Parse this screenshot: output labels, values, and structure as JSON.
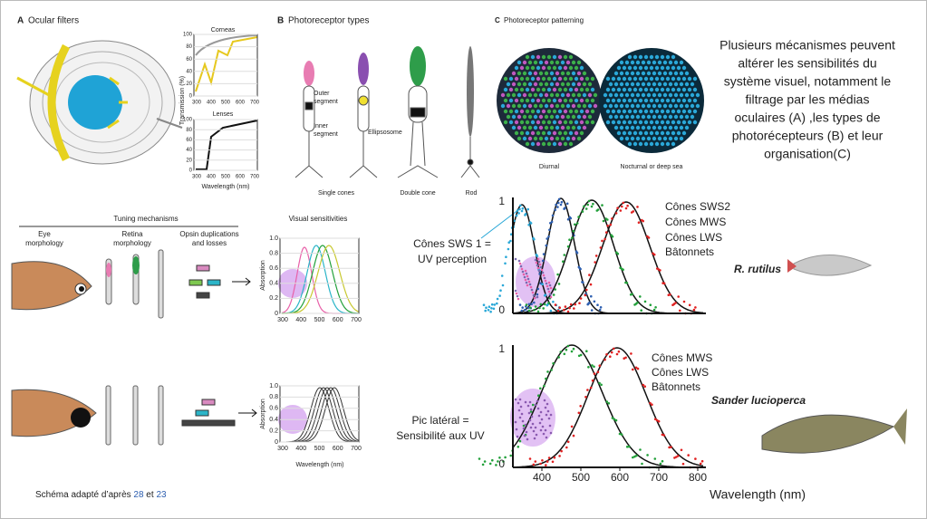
{
  "panel_a": {
    "letter": "A",
    "title": "Ocular filters",
    "corneas": {
      "title": "Corneas",
      "yticks": [
        "100",
        "80",
        "60",
        "40",
        "20",
        "0"
      ],
      "xticks": [
        "300",
        "400",
        "500",
        "600",
        "700"
      ],
      "ylabel": "Transmission (%)"
    },
    "lenses": {
      "title": "Lenses",
      "yticks": [
        "100",
        "80",
        "60",
        "40",
        "20",
        "0"
      ],
      "xticks": [
        "300",
        "400",
        "500",
        "600",
        "700"
      ],
      "xlabel": "Wavelength (nm)"
    }
  },
  "panel_b": {
    "letter": "B",
    "title": "Photoreceptor types",
    "outer_segment": [
      "Outer",
      "segment"
    ],
    "inner_segment": [
      "Inner",
      "segment"
    ],
    "ellipsosome": "Ellipsosome",
    "single_cones": "Single cones",
    "double_cone": "Double cone",
    "rod": "Rod"
  },
  "panel_c": {
    "letter": "C",
    "title": "Photoreceptor patterning",
    "diurnal": "Diurnal",
    "nocturnal": "Nocturnal or deep sea"
  },
  "summary": [
    "Plusieurs mécanismes peuvent",
    "altérer les sensibilités du",
    "système visuel, notamment le",
    "filtrage par les médias",
    "oculaires (A) ,les types de",
    "photorécepteurs (B) et leur",
    "organisation(C)"
  ],
  "tuning": {
    "title": "Tuning mechanisms",
    "eye": [
      "Eye",
      "morphology"
    ],
    "retina": [
      "Retina",
      "morphology"
    ],
    "opsin": [
      "Opsin duplications",
      "and losses"
    ],
    "visual": "Visual sensitivities",
    "chart_top": {
      "ylabel": "Absorption",
      "yticks": [
        "1.0",
        "0.8",
        "0.6",
        "0.4",
        "0.2",
        "0"
      ],
      "xticks": [
        "300",
        "400",
        "500",
        "600",
        "700"
      ]
    },
    "chart_bottom": {
      "ylabel": "Absorption",
      "yticks": [
        "1.0",
        "0.8",
        "0.6",
        "0.4",
        "0.2",
        "0"
      ],
      "xticks": [
        "300",
        "400",
        "500",
        "600",
        "700"
      ],
      "xlabel": "Wavelength (nm)"
    }
  },
  "rutilus": {
    "yticks": [
      "1",
      "0"
    ],
    "legend": [
      "Cônes SWS2",
      "Cônes MWS",
      "Cônes LWS",
      "Bâtonnets"
    ],
    "note": [
      "Cônes SWS 1 =",
      "UV perception"
    ],
    "species": "R. rutilus"
  },
  "sander": {
    "yticks": [
      "1",
      "0"
    ],
    "xticks": [
      "400",
      "500",
      "600",
      "700",
      "800"
    ],
    "legend": [
      "Cônes MWS",
      "Cônes LWS",
      "Bâtonnets"
    ],
    "note": [
      "Pic latéral =",
      "Sensibilité aux UV"
    ],
    "species": "Sander lucioperca",
    "xlabel": "Wavelength (nm)"
  },
  "footer": {
    "text": "Schéma adapté d’après ",
    "ref1": "28",
    "and": " et ",
    "ref2": "23"
  }
}
